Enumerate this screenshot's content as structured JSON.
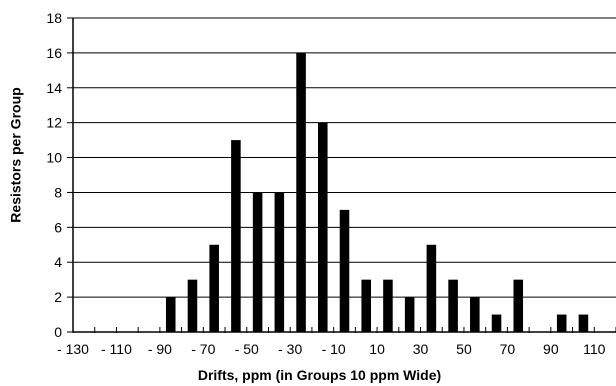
{
  "chart_data": {
    "type": "bar",
    "xlabel": "Drifts, ppm (in Groups 10 ppm Wide)",
    "ylabel": "Resistors per Group",
    "ylim": [
      0,
      18
    ],
    "yticks": [
      0,
      2,
      4,
      6,
      8,
      10,
      12,
      14,
      16,
      18
    ],
    "xlim": [
      -130,
      120
    ],
    "xtick_labels": [
      "- 130",
      "- 110",
      "- 90",
      "- 70",
      "- 50",
      "- 30",
      "- 10",
      "10",
      "30",
      "50",
      "70",
      "90",
      "110"
    ],
    "xtick_values": [
      -130,
      -110,
      -90,
      -70,
      -50,
      -30,
      -10,
      10,
      30,
      50,
      70,
      90,
      110
    ],
    "grid": "horizontal",
    "bar_color": "#000000",
    "bins": [
      {
        "x": -85,
        "value": 2
      },
      {
        "x": -75,
        "value": 3
      },
      {
        "x": -65,
        "value": 5
      },
      {
        "x": -55,
        "value": 11
      },
      {
        "x": -45,
        "value": 8
      },
      {
        "x": -35,
        "value": 8
      },
      {
        "x": -25,
        "value": 16
      },
      {
        "x": -15,
        "value": 12
      },
      {
        "x": -5,
        "value": 7
      },
      {
        "x": 5,
        "value": 3
      },
      {
        "x": 15,
        "value": 3
      },
      {
        "x": 25,
        "value": 2
      },
      {
        "x": 35,
        "value": 5
      },
      {
        "x": 45,
        "value": 3
      },
      {
        "x": 55,
        "value": 2
      },
      {
        "x": 65,
        "value": 1
      },
      {
        "x": 75,
        "value": 3
      },
      {
        "x": 95,
        "value": 1
      },
      {
        "x": 105,
        "value": 1
      }
    ]
  }
}
